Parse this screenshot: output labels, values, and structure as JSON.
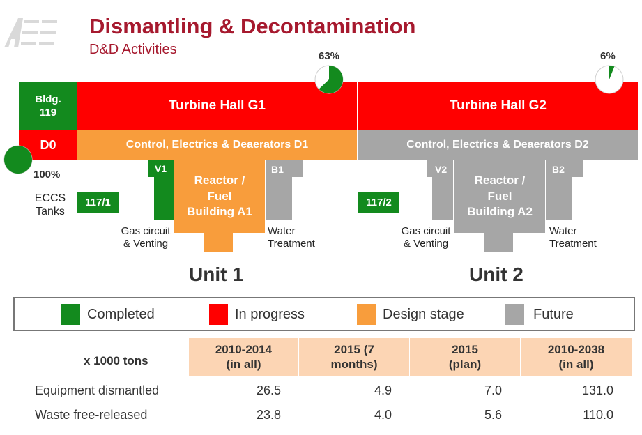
{
  "header": {
    "logo": "AEE",
    "title": "Dismantling & Decontamination",
    "subtitle": "D&D Activities"
  },
  "diagram": {
    "bldg119": "Bldg. 119",
    "d0": "D0",
    "turbine_g1": "Turbine Hall G1",
    "turbine_g2": "Turbine Hall G2",
    "control_d1": "Control, Electrics & Deaerators D1",
    "control_d2": "Control, Electrics & Deaerators D2",
    "v1": "V1",
    "b1": "B1",
    "v2": "V2",
    "b2": "B2",
    "reactor_a1": "Reactor / Fuel Building A1",
    "reactor_a2": "Reactor / Fuel Building A2",
    "b117_1": "117/1",
    "b117_2": "117/2",
    "eccs": "ECCS Tanks",
    "gas_circuit": "Gas circuit & Venting",
    "water_treatment": "Water Treatment",
    "unit1": "Unit 1",
    "unit2": "Unit 2"
  },
  "progress": {
    "g1_label": "63%",
    "g1_value": 0.63,
    "g2_label": "6%",
    "g2_value": 0.06,
    "d0_label": "100%",
    "d0_value": 1.0
  },
  "legend": {
    "completed": "Completed",
    "in_progress": "In progress",
    "design_stage": "Design stage",
    "future": "Future"
  },
  "colors": {
    "completed": "#138a1e",
    "in_progress": "#ff0000",
    "design_stage": "#f89d3c",
    "future": "#a6a6a6",
    "title": "#a6192e"
  },
  "table": {
    "unit_label": "x 1000 tons",
    "columns": [
      "2010-2014 (in all)",
      "2015 (7 months)",
      "2015 (plan)",
      "2010-2038 (in all)"
    ],
    "rows": [
      {
        "label": "Equipment dismantled",
        "values": [
          "26.5",
          "4.9",
          "7.0",
          "131.0"
        ]
      },
      {
        "label": "Waste free-released",
        "values": [
          "23.8",
          "4.0",
          "5.6",
          "110.0"
        ]
      }
    ]
  }
}
